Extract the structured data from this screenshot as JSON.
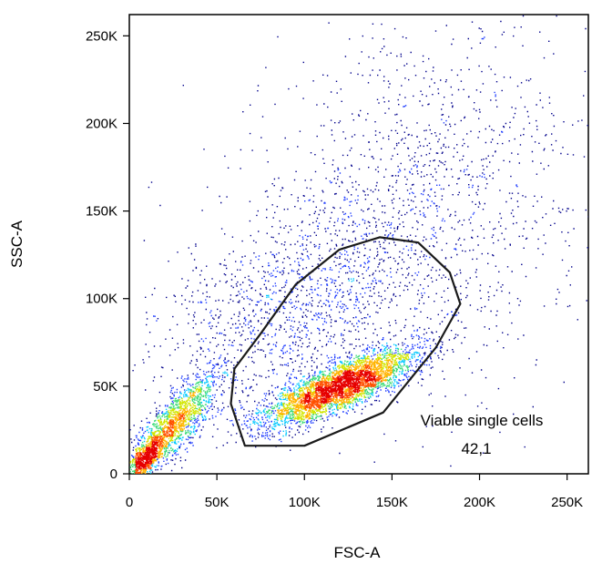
{
  "chart_data": {
    "type": "scatter",
    "subtype": "flow-cytometry density dot plot",
    "xlabel": "FSC-A",
    "ylabel": "SSC-A",
    "xlim": [
      0,
      262144
    ],
    "ylim": [
      0,
      262144
    ],
    "x_ticks": [
      {
        "value": 0,
        "label": "0"
      },
      {
        "value": 50000,
        "label": "50K"
      },
      {
        "value": 100000,
        "label": "100K"
      },
      {
        "value": 150000,
        "label": "150K"
      },
      {
        "value": 200000,
        "label": "200K"
      },
      {
        "value": 250000,
        "label": "250K"
      }
    ],
    "y_ticks": [
      {
        "value": 0,
        "label": "0"
      },
      {
        "value": 50000,
        "label": "50K"
      },
      {
        "value": 100000,
        "label": "100K"
      },
      {
        "value": 150000,
        "label": "150K"
      },
      {
        "value": 200000,
        "label": "200K"
      },
      {
        "value": 250000,
        "label": "250K"
      }
    ],
    "grid": false,
    "color_scale": [
      "#00008b",
      "#1e3cff",
      "#00c8ff",
      "#3cdc78",
      "#d2e600",
      "#ffb400",
      "#ff5000",
      "#e60000"
    ],
    "populations": [
      {
        "center": [
          120000,
          50000
        ],
        "spread": [
          22000,
          11000
        ],
        "correlation": 0.8,
        "fraction": 0.45
      },
      {
        "center": [
          25000,
          28000
        ],
        "spread": [
          12000,
          14000
        ],
        "correlation": 0.8,
        "fraction": 0.18
      },
      {
        "center": [
          9000,
          9000
        ],
        "spread": [
          5000,
          6000
        ],
        "correlation": 0.7,
        "fraction": 0.07
      },
      {
        "center": [
          90000,
          95000
        ],
        "spread": [
          40000,
          28000
        ],
        "correlation": 0.5,
        "fraction": 0.14
      },
      {
        "center": [
          160000,
          150000
        ],
        "spread": [
          50000,
          55000
        ],
        "correlation": 0.2,
        "fraction": 0.16
      }
    ],
    "gate": {
      "name": "Viable single cells",
      "value": "42,1",
      "vertices": [
        [
          58000,
          40000
        ],
        [
          60000,
          60000
        ],
        [
          75000,
          80000
        ],
        [
          95000,
          108000
        ],
        [
          120000,
          128000
        ],
        [
          143000,
          135000
        ],
        [
          165000,
          132000
        ],
        [
          183000,
          115000
        ],
        [
          189000,
          97000
        ],
        [
          175000,
          72000
        ],
        [
          145000,
          35000
        ],
        [
          100000,
          16000
        ],
        [
          66000,
          16000
        ]
      ]
    }
  }
}
